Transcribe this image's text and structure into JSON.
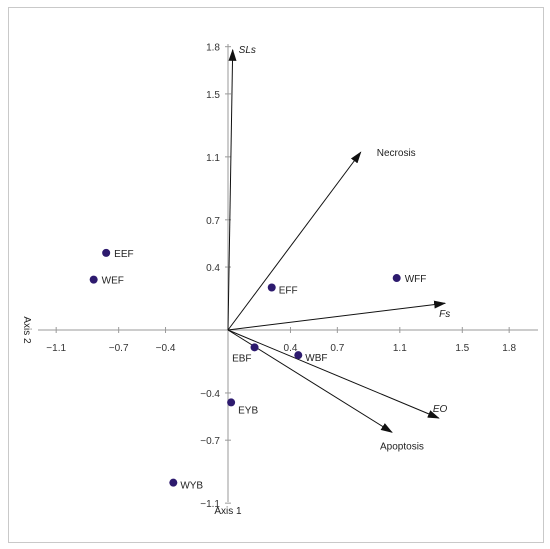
{
  "chart_data": {
    "type": "scatter",
    "xlabel": "Axis 1",
    "ylabel": "Axis 2",
    "xlim": [
      -1.15,
      1.85
    ],
    "ylim": [
      -1.1,
      1.8
    ],
    "x_ticks": [
      -1.1,
      -0.7,
      -0.4,
      0.4,
      0.7,
      1.1,
      1.5,
      1.8
    ],
    "x_tick_labels": [
      "−1.1",
      "−0.7",
      "−0.4",
      "0.4",
      "0.7",
      "1.1",
      "1.5",
      "1.8"
    ],
    "y_ticks": [
      1.8,
      1.5,
      1.1,
      0.7,
      0.4,
      -0.4,
      -0.7,
      -1.1
    ],
    "y_tick_labels": [
      "1.8",
      "1.5",
      "1.1",
      "0.7",
      "0.4",
      "−0.4",
      "−0.7",
      "−1.1"
    ],
    "point_color": "#2d1a6e",
    "points": [
      {
        "label": "EEF",
        "x": -0.78,
        "y": 0.49
      },
      {
        "label": "WEF",
        "x": -0.86,
        "y": 0.32
      },
      {
        "label": "EFF",
        "x": 0.28,
        "y": 0.27
      },
      {
        "label": "WFF",
        "x": 1.08,
        "y": 0.33
      },
      {
        "label": "EBF",
        "x": 0.17,
        "y": -0.11
      },
      {
        "label": "WBF",
        "x": 0.45,
        "y": -0.16
      },
      {
        "label": "EYB",
        "x": 0.02,
        "y": -0.46
      },
      {
        "label": "WYB",
        "x": -0.35,
        "y": -0.97
      }
    ],
    "vectors": [
      {
        "label": "SLs",
        "italic": true,
        "x": 0.03,
        "y": 1.78
      },
      {
        "label": "Necrosis",
        "italic": false,
        "x": 0.85,
        "y": 1.13
      },
      {
        "label": "Fs",
        "italic": true,
        "x": 1.39,
        "y": 0.17
      },
      {
        "label": "EO",
        "italic": true,
        "x": 1.35,
        "y": -0.56
      },
      {
        "label": "Apoptosis",
        "italic": false,
        "x": 1.05,
        "y": -0.65
      }
    ]
  }
}
